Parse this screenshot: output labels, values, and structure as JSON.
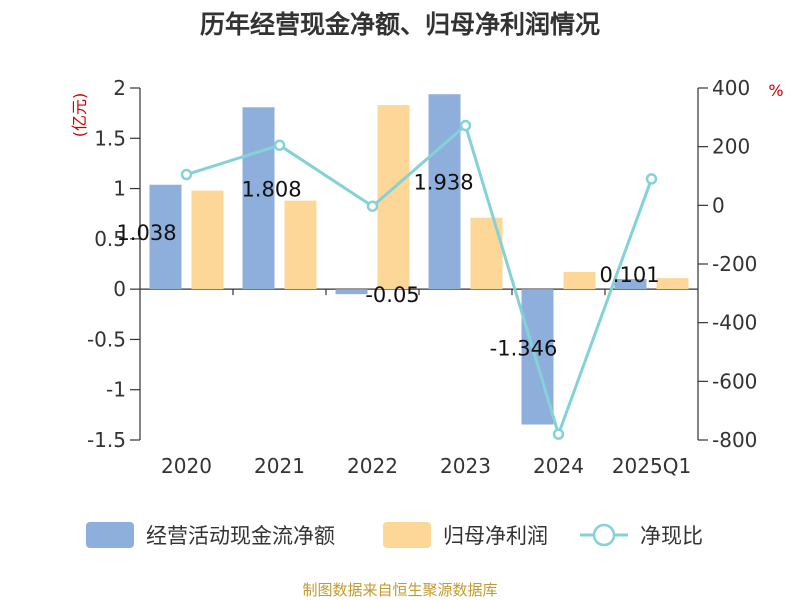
{
  "chart_data": {
    "type": "bar",
    "title": "历年经营现金净额、归母净利润情况",
    "categories": [
      "2020",
      "2021",
      "2022",
      "2023",
      "2024",
      "2025Q1"
    ],
    "y_left_unit": "(亿元)",
    "y_right_unit": "%",
    "y_left_ticks": [
      "2",
      "1.5",
      "1",
      "0.5",
      "0",
      "-0.5",
      "-1",
      "-1.5"
    ],
    "y_right_ticks": [
      "400",
      "200",
      "0",
      "-200",
      "-400",
      "-600",
      "-800"
    ],
    "ylim_left": [
      -1.5,
      2
    ],
    "ylim_right": [
      -800,
      400
    ],
    "series": [
      {
        "name": "经营活动现金流净额",
        "type": "bar",
        "axis": "left",
        "color": "#8eaedb",
        "values": [
          1.038,
          1.808,
          -0.05,
          1.938,
          -1.346,
          0.101
        ],
        "labels": [
          "1.038",
          "1.808",
          "-0.05",
          "1.938",
          "-1.346",
          "0.101"
        ]
      },
      {
        "name": "归母净利润",
        "type": "bar",
        "axis": "left",
        "color": "#fdd797",
        "values": [
          0.98,
          0.88,
          1.83,
          0.71,
          0.17,
          0.11
        ]
      },
      {
        "name": "净现比",
        "type": "line",
        "axis": "right",
        "color": "#84d2d6",
        "values": [
          105,
          205,
          -3,
          272,
          -780,
          90
        ]
      }
    ],
    "grid": false,
    "legend_position": "bottom"
  },
  "source_text": "制图数据来自恒生聚源数据库"
}
